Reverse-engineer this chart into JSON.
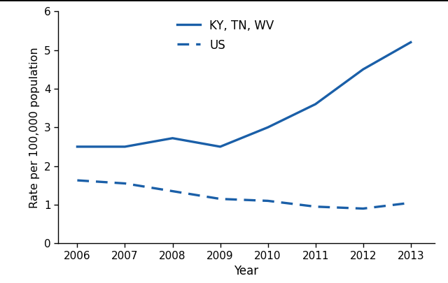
{
  "years": [
    2006,
    2007,
    2008,
    2009,
    2010,
    2011,
    2012,
    2013
  ],
  "ky_tn_wv": [
    2.5,
    2.5,
    2.72,
    2.5,
    3.0,
    3.6,
    4.5,
    5.2
  ],
  "us": [
    1.63,
    1.55,
    1.35,
    1.15,
    1.1,
    0.95,
    0.9,
    1.05
  ],
  "line_color": "#1a5fa8",
  "ylabel": "Rate per 100,000 population",
  "xlabel": "Year",
  "ylim": [
    0,
    6
  ],
  "yticks": [
    0,
    1,
    2,
    3,
    4,
    5,
    6
  ],
  "xlim": [
    2005.6,
    2013.5
  ],
  "legend_solid": "KY, TN, WV",
  "legend_dashed": "US",
  "linewidth": 2.4,
  "bg_color": "#ffffff",
  "tick_fontsize": 11,
  "label_fontsize": 12,
  "legend_fontsize": 12
}
